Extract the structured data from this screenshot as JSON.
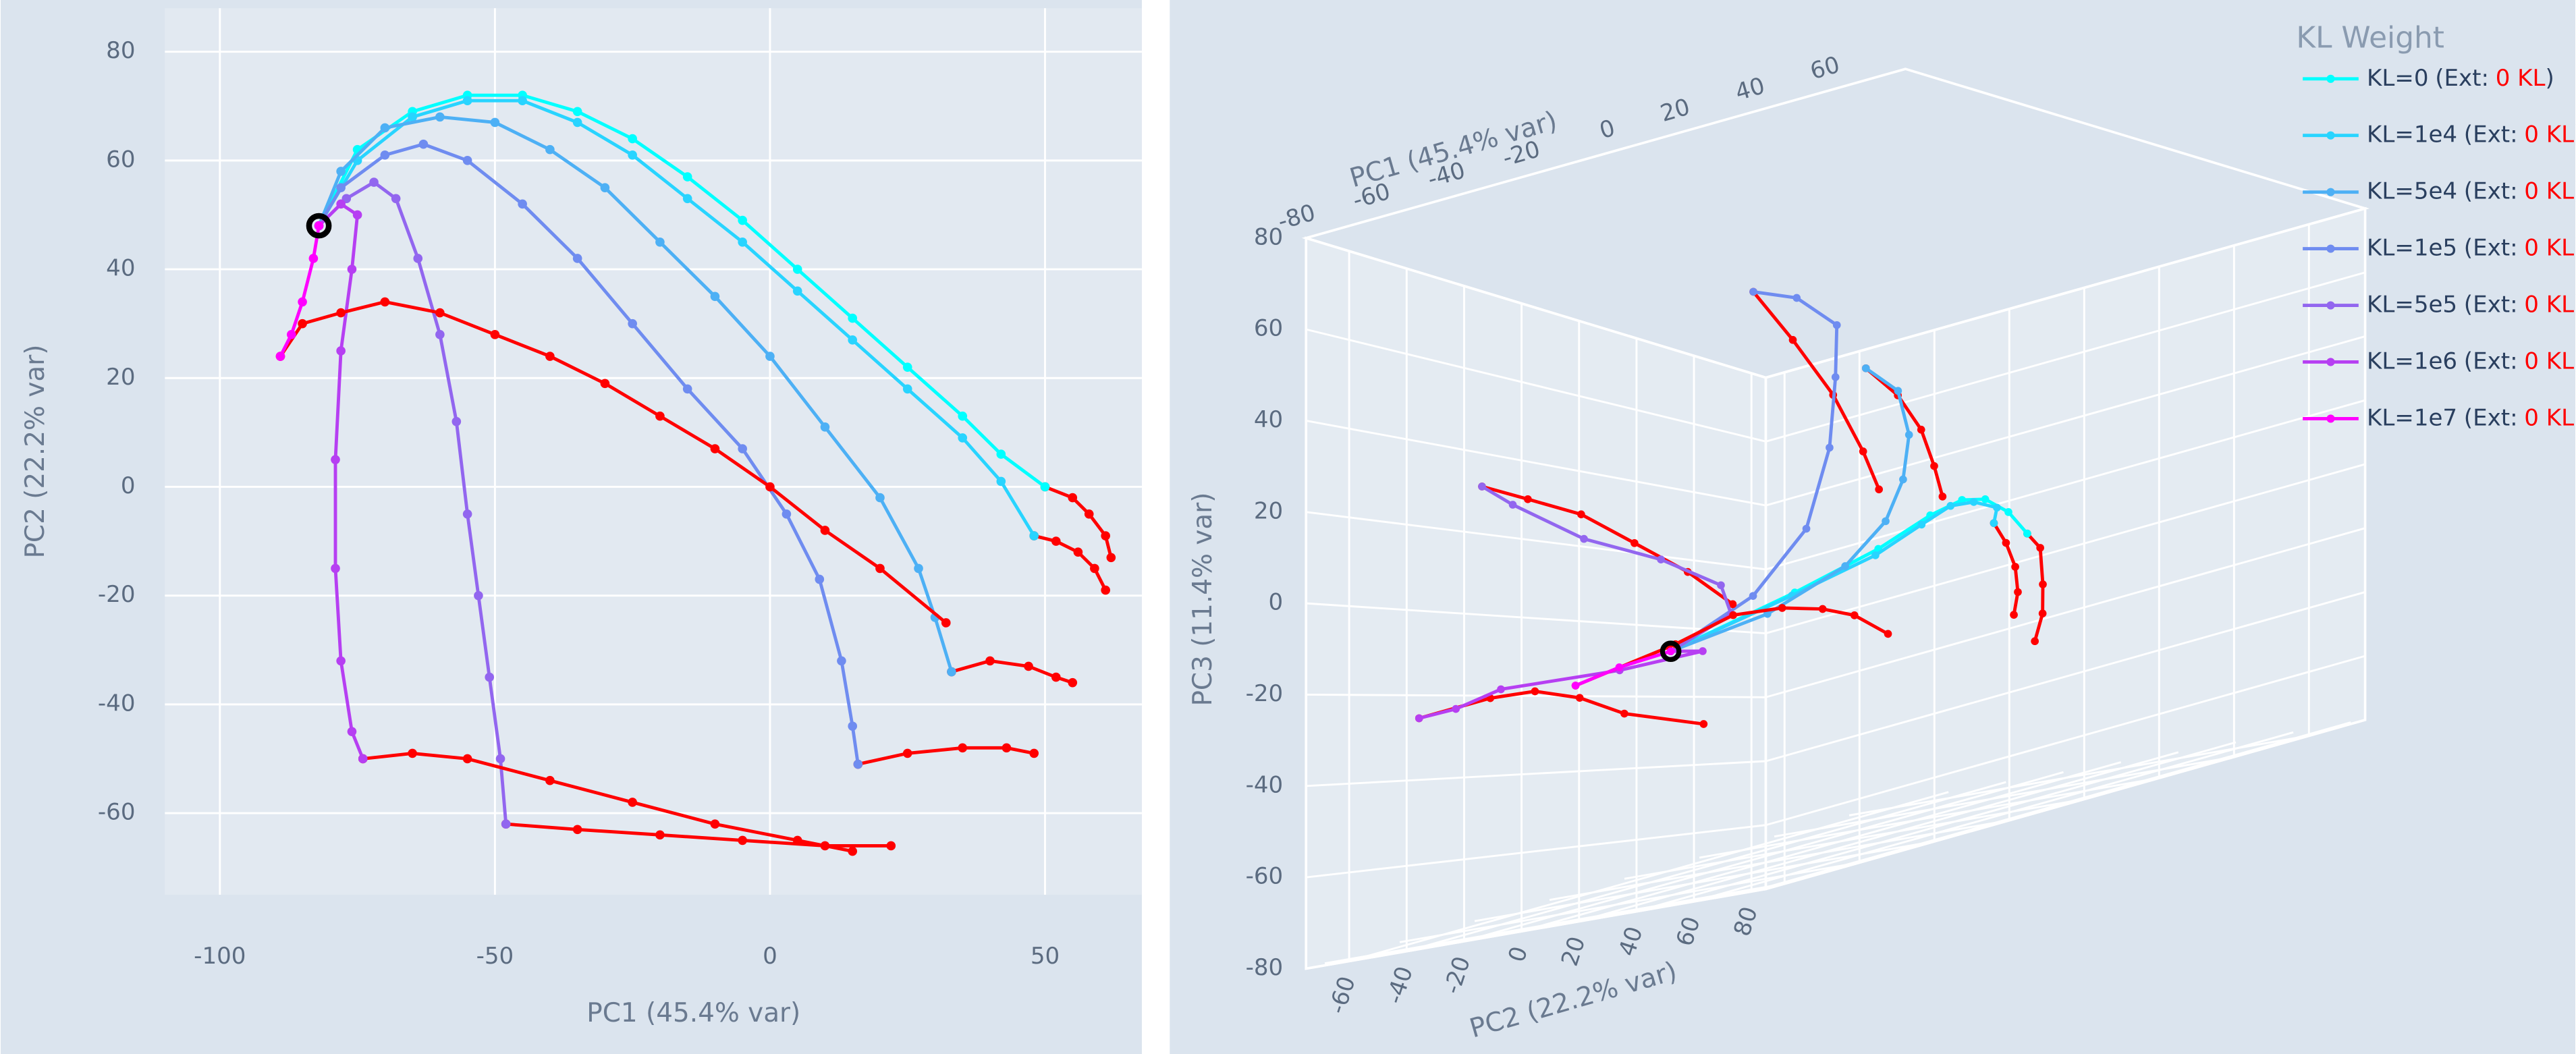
{
  "chart_data": [
    {
      "type": "line",
      "x_label": "PC1 (45.4% var)",
      "y_label": "PC2 (22.2% var)",
      "xlim": [
        -110,
        67.6
      ],
      "ylim": [
        -75,
        88
      ],
      "xticks": [
        -100,
        -50,
        0,
        50
      ],
      "yticks": [
        -60,
        -40,
        -20,
        0,
        20,
        40,
        60,
        80
      ],
      "grid": true,
      "start": {
        "x": -82,
        "y": 48,
        "color": "#000000"
      },
      "series": [
        {
          "color": "#00ffff",
          "x": [
            -82,
            -75,
            -65,
            -55,
            -45,
            -35,
            -25,
            -15,
            -5,
            5,
            15,
            25,
            35,
            42,
            50
          ],
          "y": [
            48,
            62,
            69,
            72,
            72,
            69,
            64,
            57,
            49,
            40,
            31,
            22,
            13,
            6,
            0
          ],
          "extension": {
            "color": "#ff0000",
            "x": [
              50,
              55,
              58,
              61,
              62
            ],
            "y": [
              0,
              -2,
              -5,
              -9,
              -13
            ]
          }
        },
        {
          "color": "#28d4ff",
          "x": [
            -82,
            -75,
            -65,
            -55,
            -45,
            -35,
            -25,
            -15,
            -5,
            5,
            15,
            25,
            35,
            42,
            48
          ],
          "y": [
            48,
            60,
            68,
            71,
            71,
            67,
            61,
            53,
            45,
            36,
            27,
            18,
            9,
            1,
            -9
          ],
          "extension": {
            "color": "#ff0000",
            "x": [
              48,
              52,
              56,
              59,
              61
            ],
            "y": [
              -9,
              -10,
              -12,
              -15,
              -19
            ]
          }
        },
        {
          "color": "#4db0f5",
          "x": [
            -82,
            -78,
            -70,
            -60,
            -50,
            -40,
            -30,
            -20,
            -10,
            0,
            10,
            20,
            27,
            30,
            33
          ],
          "y": [
            48,
            58,
            66,
            68,
            67,
            62,
            55,
            45,
            35,
            24,
            11,
            -2,
            -15,
            -24,
            -34
          ],
          "extension": {
            "color": "#ff0000",
            "x": [
              33,
              40,
              47,
              52,
              55
            ],
            "y": [
              -34,
              -32,
              -33,
              -35,
              -36
            ]
          }
        },
        {
          "color": "#6f8cf0",
          "x": [
            -82,
            -78,
            -70,
            -63,
            -55,
            -45,
            -35,
            -25,
            -15,
            -5,
            3,
            9,
            13,
            15,
            16
          ],
          "y": [
            48,
            55,
            61,
            63,
            60,
            52,
            42,
            30,
            18,
            7,
            -5,
            -17,
            -32,
            -44,
            -51
          ],
          "extension": {
            "color": "#ff0000",
            "x": [
              16,
              25,
              35,
              43,
              48
            ],
            "y": [
              -51,
              -49,
              -48,
              -48,
              -49
            ]
          }
        },
        {
          "color": "#9266ef",
          "x": [
            -82,
            -77,
            -72,
            -68,
            -64,
            -60,
            -57,
            -55,
            -53,
            -51,
            -49,
            -48
          ],
          "y": [
            48,
            53,
            56,
            53,
            42,
            28,
            12,
            -5,
            -20,
            -35,
            -50,
            -62
          ],
          "extension": {
            "color": "#ff0000",
            "x": [
              -48,
              -35,
              -20,
              -5,
              10,
              22
            ],
            "y": [
              -62,
              -63,
              -64,
              -65,
              -66,
              -66
            ]
          }
        },
        {
          "color": "#b63ff2",
          "x": [
            -82,
            -78,
            -75,
            -76,
            -78,
            -79,
            -79,
            -78,
            -76,
            -74
          ],
          "y": [
            48,
            52,
            50,
            40,
            25,
            5,
            -15,
            -32,
            -45,
            -50
          ],
          "extension": {
            "color": "#ff0000",
            "x": [
              -74,
              -65,
              -55,
              -40,
              -25,
              -10,
              5,
              15
            ],
            "y": [
              -50,
              -49,
              -50,
              -54,
              -58,
              -62,
              -65,
              -67
            ]
          }
        },
        {
          "color": "#ff00ff",
          "x": [
            -82,
            -83,
            -85,
            -87,
            -89
          ],
          "y": [
            48,
            42,
            34,
            28,
            24
          ],
          "extension": {
            "color": "#ff0000",
            "x": [
              -89,
              -85,
              -78,
              -70,
              -60,
              -50,
              -40,
              -30,
              -20,
              -10,
              0,
              10,
              20,
              32
            ],
            "y": [
              24,
              30,
              32,
              34,
              32,
              28,
              24,
              19,
              13,
              7,
              0,
              -8,
              -15,
              -25
            ]
          }
        }
      ]
    },
    {
      "type": "line3d",
      "x_label": "PC1 (45.4% var)",
      "y_label": "PC2 (22.2% var)",
      "z_label": "PC3 (11.4% var)",
      "xlim": [
        -85,
        75
      ],
      "ylim": [
        -75,
        85
      ],
      "zlim": [
        -80,
        80
      ],
      "xticks": [
        -80,
        -60,
        -40,
        -20,
        0,
        20,
        40,
        60
      ],
      "yticks": [
        -60,
        -40,
        -20,
        0,
        20,
        40,
        60,
        80
      ],
      "zticks": [
        -80,
        -60,
        -40,
        -20,
        0,
        20,
        40,
        60,
        80
      ],
      "grid": true,
      "legend_title": "KL Weight",
      "legend_position": "top-right",
      "ext_prefix": "(Ext:",
      "ext_name": "0 KL",
      "ext_suffix": ")",
      "start": {
        "x": -82,
        "y": 48,
        "z": -8,
        "color": "#000000"
      },
      "series": [
        {
          "name": "KL=0",
          "color": "#00ffff",
          "x": [
            -82,
            -65,
            -45,
            -25,
            -5,
            15,
            35,
            50
          ],
          "y": [
            48,
            69,
            72,
            64,
            49,
            31,
            13,
            0
          ],
          "z": [
            -8,
            5,
            12,
            15,
            12,
            5,
            -5,
            -15
          ],
          "extension": {
            "color": "#ff0000",
            "x": [
              50,
              55,
              58,
              61,
              62
            ],
            "y": [
              0,
              -2,
              -5,
              -9,
              -13
            ],
            "z": [
              -15,
              -20,
              -30,
              -38,
              -45
            ]
          }
        },
        {
          "name": "KL=1e4",
          "color": "#28d4ff",
          "x": [
            -82,
            -65,
            -45,
            -25,
            -5,
            15,
            35,
            48
          ],
          "y": [
            48,
            68,
            71,
            61,
            45,
            27,
            9,
            -9
          ],
          "z": [
            -8,
            4,
            10,
            12,
            10,
            4,
            -4,
            -12
          ],
          "extension": {
            "color": "#ff0000",
            "x": [
              48,
              52,
              56,
              59,
              61
            ],
            "y": [
              -9,
              -10,
              -12,
              -15,
              -19
            ],
            "z": [
              -12,
              -18,
              -25,
              -32,
              -38
            ]
          }
        },
        {
          "name": "KL=5e4",
          "color": "#4db0f5",
          "x": [
            -82,
            -70,
            -50,
            -30,
            -10,
            10,
            27,
            33
          ],
          "y": [
            48,
            66,
            67,
            55,
            35,
            11,
            -15,
            -34
          ],
          "z": [
            -8,
            0,
            8,
            14,
            18,
            22,
            26,
            28
          ],
          "extension": {
            "color": "#ff0000",
            "x": [
              33,
              40,
              47,
              52,
              55
            ],
            "y": [
              -34,
              -32,
              -33,
              -35,
              -36
            ],
            "z": [
              28,
              20,
              10,
              0,
              -8
            ]
          }
        },
        {
          "name": "KL=1e5",
          "color": "#6f8cf0",
          "x": [
            -82,
            -70,
            -55,
            -35,
            -15,
            3,
            13,
            16
          ],
          "y": [
            48,
            61,
            60,
            42,
            18,
            -5,
            -32,
            -51
          ],
          "z": [
            -8,
            5,
            20,
            35,
            45,
            50,
            50,
            48
          ],
          "extension": {
            "color": "#ff0000",
            "x": [
              16,
              25,
              35,
              43,
              48
            ],
            "y": [
              -51,
              -49,
              -48,
              -48,
              -49
            ],
            "z": [
              48,
              35,
              20,
              5,
              -5
            ]
          }
        },
        {
          "name": "KL=5e5",
          "color": "#9266ef",
          "x": [
            -82,
            -72,
            -64,
            -57,
            -53,
            -49,
            -48
          ],
          "y": [
            48,
            56,
            42,
            12,
            -20,
            -50,
            -62
          ],
          "z": [
            -8,
            0,
            5,
            8,
            10,
            15,
            18
          ],
          "extension": {
            "color": "#ff0000",
            "x": [
              -48,
              -35,
              -20,
              -5,
              10,
              22
            ],
            "y": [
              -62,
              -63,
              -64,
              -65,
              -66,
              -66
            ],
            "z": [
              18,
              12,
              5,
              -5,
              -15,
              -25
            ]
          }
        },
        {
          "name": "KL=1e6",
          "color": "#b63ff2",
          "x": [
            -82,
            -75,
            -78,
            -79,
            -78,
            -74
          ],
          "y": [
            48,
            50,
            25,
            -15,
            -32,
            -50
          ],
          "z": [
            -8,
            -10,
            -15,
            -20,
            -25,
            -28
          ],
          "extension": {
            "color": "#ff0000",
            "x": [
              -74,
              -55,
              -40,
              -25,
              -10,
              15
            ],
            "y": [
              -50,
              -50,
              -54,
              -58,
              -62,
              -67
            ],
            "z": [
              -28,
              -28,
              -30,
              -35,
              -42,
              -50
            ]
          }
        },
        {
          "name": "KL=1e7",
          "color": "#ff00ff",
          "x": [
            -82,
            -85,
            -89
          ],
          "y": [
            48,
            34,
            24
          ],
          "z": [
            -8,
            -12,
            -16
          ],
          "extension": {
            "color": "#ff0000",
            "x": [
              -89,
              -70,
              -50,
              -30,
              -10,
              10,
              32
            ],
            "y": [
              24,
              34,
              28,
              19,
              7,
              -8,
              -25
            ],
            "z": [
              -16,
              -10,
              -8,
              -12,
              -18,
              -25,
              -35
            ]
          }
        }
      ]
    }
  ]
}
